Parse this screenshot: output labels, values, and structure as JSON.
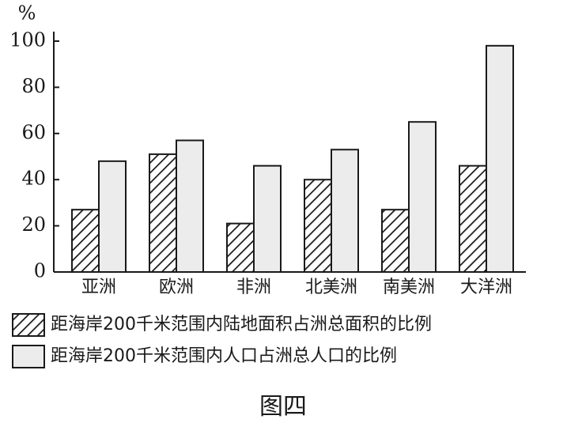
{
  "chart_data": {
    "type": "bar",
    "title": "图四",
    "y_label": "%",
    "categories": [
      "亚洲",
      "欧洲",
      "非洲",
      "北美洲",
      "南美洲",
      "大洋洲"
    ],
    "series": [
      {
        "name": "距海岸200千米范围内陆地面积占洲总面积的比例",
        "color": "#1a1a1a",
        "pattern": "hatch",
        "values": [
          27,
          51,
          21,
          40,
          27,
          46
        ]
      },
      {
        "name": "距海岸200千米范围内人口占洲总人口的比例",
        "color": "#ececec",
        "values": [
          48,
          57,
          46,
          53,
          65,
          98
        ]
      }
    ],
    "ylim": [
      0,
      100
    ],
    "yticks": [
      0,
      20,
      40,
      60,
      80,
      100
    ]
  }
}
